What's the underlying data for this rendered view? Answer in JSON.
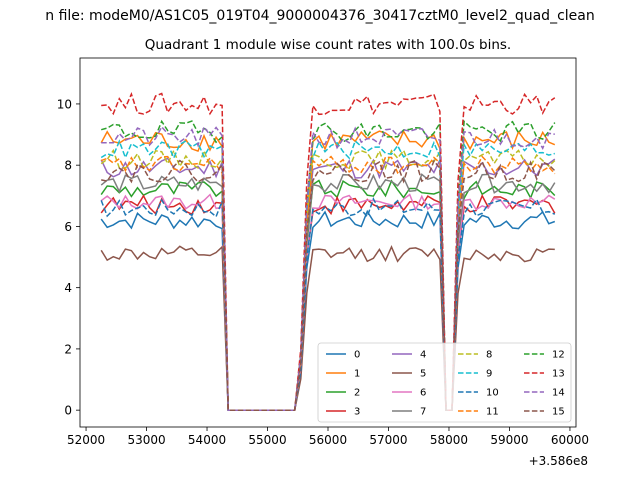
{
  "figure": {
    "suptitle": "n file: modeM0/AS1C05_019T04_9000004376_30417cztM0_level2_quad_clean",
    "offset_label": "+3.586e8"
  },
  "chart_data": {
    "type": "line",
    "title": "Quadrant 1 module wise count rates with 100.0s bins.",
    "xlabel": "",
    "ylabel": "",
    "x_offset": 358600000,
    "xlim": [
      51900,
      60100
    ],
    "ylim": [
      -0.55,
      11.5
    ],
    "xticks": [
      52000,
      53000,
      54000,
      55000,
      56000,
      57000,
      58000,
      59000,
      60000
    ],
    "xtick_labels": [
      "52000",
      "53000",
      "54000",
      "55000",
      "56000",
      "57000",
      "58000",
      "59000",
      "60000"
    ],
    "yticks": [
      0,
      2,
      4,
      6,
      8,
      10
    ],
    "ytick_labels": [
      "0",
      "2",
      "4",
      "6",
      "8",
      "10"
    ],
    "grid": false,
    "legend": {
      "placement": "lower-right",
      "columns": 4
    },
    "segments": [
      {
        "start": 52250,
        "end": 54250,
        "step": 100
      },
      {
        "start": 54350,
        "end": 55450,
        "step": 100,
        "zero": true
      },
      {
        "start": 55550,
        "end": 57850,
        "step": 100
      },
      {
        "start": 57950,
        "end": 58050,
        "step": 100,
        "zero": true
      },
      {
        "start": 58150,
        "end": 59750,
        "step": 100
      }
    ],
    "series": [
      {
        "name": "0",
        "color": "#1f77b4",
        "dash": "solid",
        "level": 6.2,
        "spread": 0.3
      },
      {
        "name": "1",
        "color": "#ff7f0e",
        "dash": "solid",
        "level": 8.8,
        "spread": 0.35
      },
      {
        "name": "2",
        "color": "#2ca02c",
        "dash": "solid",
        "level": 7.2,
        "spread": 0.3
      },
      {
        "name": "3",
        "color": "#d62728",
        "dash": "solid",
        "level": 6.7,
        "spread": 0.3
      },
      {
        "name": "4",
        "color": "#9467bd",
        "dash": "solid",
        "level": 7.9,
        "spread": 0.35
      },
      {
        "name": "5",
        "color": "#8c564b",
        "dash": "solid",
        "level": 5.1,
        "spread": 0.25
      },
      {
        "name": "6",
        "color": "#e377c2",
        "dash": "solid",
        "level": 6.8,
        "spread": 0.25
      },
      {
        "name": "7",
        "color": "#7f7f7f",
        "dash": "solid",
        "level": 7.4,
        "spread": 0.3
      },
      {
        "name": "8",
        "color": "#bcbd22",
        "dash": "dashed",
        "level": 8.2,
        "spread": 0.3
      },
      {
        "name": "9",
        "color": "#17becf",
        "dash": "dashed",
        "level": 8.5,
        "spread": 0.3
      },
      {
        "name": "10",
        "color": "#1f77b4",
        "dash": "dashed",
        "level": 6.6,
        "spread": 0.3
      },
      {
        "name": "11",
        "color": "#ff7f0e",
        "dash": "dashed",
        "level": 8.0,
        "spread": 0.3
      },
      {
        "name": "12",
        "color": "#2ca02c",
        "dash": "dashed",
        "level": 9.1,
        "spread": 0.35
      },
      {
        "name": "13",
        "color": "#d62728",
        "dash": "dashed",
        "level": 10.0,
        "spread": 0.35
      },
      {
        "name": "14",
        "color": "#9467bd",
        "dash": "dashed",
        "level": 8.9,
        "spread": 0.35
      },
      {
        "name": "15",
        "color": "#8c564b",
        "dash": "dashed",
        "level": 7.8,
        "spread": 0.35
      }
    ]
  }
}
